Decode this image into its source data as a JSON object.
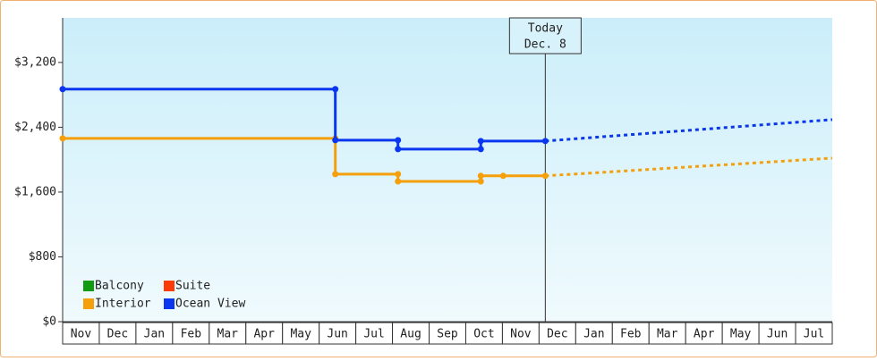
{
  "chart_data": {
    "type": "line",
    "step": true,
    "categories": [
      "Nov",
      "Dec",
      "Jan",
      "Feb",
      "Mar",
      "Apr",
      "May",
      "Jun",
      "Jul",
      "Aug",
      "Sep",
      "Oct",
      "Nov",
      "Dec",
      "Jan",
      "Feb",
      "Mar",
      "Apr",
      "May",
      "Jun",
      "Jul"
    ],
    "xlim": [
      0,
      21
    ],
    "ylim": [
      0,
      3750
    ],
    "yticks": [
      {
        "value": 0,
        "label": "$0"
      },
      {
        "value": 800,
        "label": "$800"
      },
      {
        "value": 1600,
        "label": "$1,600"
      },
      {
        "value": 2400,
        "label": "$2,400"
      },
      {
        "value": 3200,
        "label": "$3,200"
      }
    ],
    "series": [
      {
        "name": "Balcony",
        "color": "#129a12",
        "x": [],
        "values": []
      },
      {
        "name": "Suite",
        "color": "#ff3a0a",
        "x": [],
        "values": []
      },
      {
        "name": "Interior",
        "color": "#f5a00a",
        "x": [
          0,
          7.44,
          7.44,
          9.15,
          9.15,
          11.41,
          11.41,
          12.02,
          13.17
        ],
        "values": [
          2262,
          2262,
          1821,
          1821,
          1732,
          1732,
          1800,
          1800,
          1800
        ],
        "forecast": {
          "x": [
            13.17,
            21
          ],
          "values": [
            1800,
            2019
          ]
        }
      },
      {
        "name": "Ocean View",
        "color": "#0a36f0",
        "x": [
          0,
          7.44,
          7.44,
          9.15,
          9.15,
          11.41,
          11.41,
          13.17
        ],
        "values": [
          2870,
          2870,
          2240,
          2240,
          2130,
          2130,
          2230,
          2230
        ],
        "forecast": {
          "x": [
            13.17,
            21
          ],
          "values": [
            2230,
            2494
          ]
        }
      }
    ],
    "annotation": {
      "x": 13.17,
      "lines": [
        "Today",
        "Dec. 8"
      ]
    },
    "legend": "lower left"
  }
}
